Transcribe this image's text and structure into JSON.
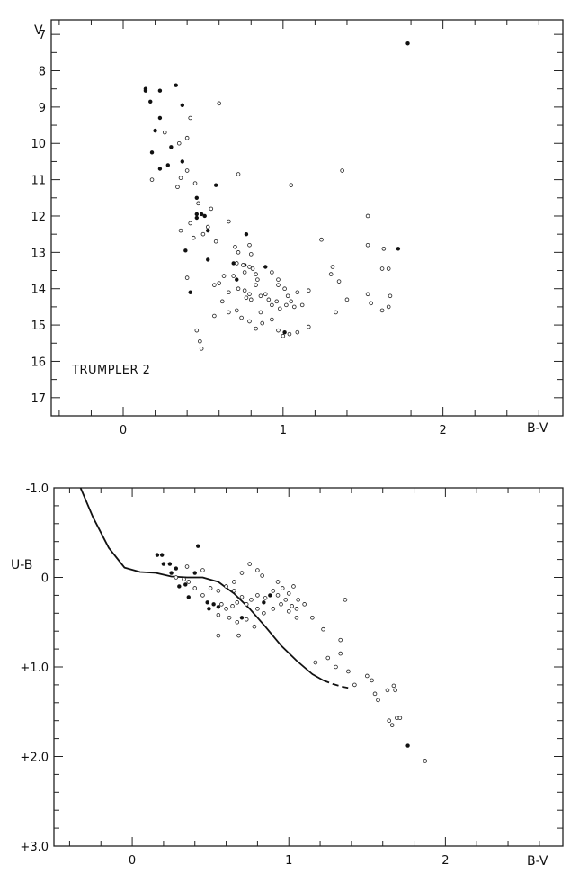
{
  "chart_data": [
    {
      "type": "scatter",
      "title": "TRUMPLER 2",
      "xlabel": "B-V",
      "ylabel": "V",
      "xlim": [
        -0.45,
        2.75
      ],
      "ylim": [
        6.6,
        17.5
      ],
      "y_inverted": true,
      "x_ticks": [
        {
          "v": 0,
          "label": "0"
        },
        {
          "v": 1,
          "label": "1"
        },
        {
          "v": 2,
          "label": "2"
        }
      ],
      "y_ticks": [
        {
          "v": 7,
          "label": "7"
        },
        {
          "v": 8,
          "label": "8"
        },
        {
          "v": 9,
          "label": "9"
        },
        {
          "v": 10,
          "label": "10"
        },
        {
          "v": 11,
          "label": "11"
        },
        {
          "v": 12,
          "label": "12"
        },
        {
          "v": 13,
          "label": "13"
        },
        {
          "v": 14,
          "label": "14"
        },
        {
          "v": 15,
          "label": "15"
        },
        {
          "v": 16,
          "label": "16"
        },
        {
          "v": 17,
          "label": "17"
        }
      ],
      "grid": false,
      "series": [
        {
          "marker": "filled",
          "points": [
            [
              0.14,
              8.5
            ],
            [
              0.14,
              8.55
            ],
            [
              0.23,
              8.55
            ],
            [
              0.33,
              8.4
            ],
            [
              0.17,
              8.85
            ],
            [
              0.37,
              8.95
            ],
            [
              0.2,
              9.65
            ],
            [
              0.23,
              9.3
            ],
            [
              0.3,
              10.1
            ],
            [
              0.18,
              10.25
            ],
            [
              0.23,
              10.7
            ],
            [
              0.28,
              10.6
            ],
            [
              0.37,
              10.5
            ],
            [
              0.58,
              11.15
            ],
            [
              0.46,
              11.5
            ],
            [
              0.46,
              11.95
            ],
            [
              0.49,
              11.95
            ],
            [
              0.46,
              12.05
            ],
            [
              0.51,
              12.0
            ],
            [
              0.53,
              12.4
            ],
            [
              0.77,
              12.5
            ],
            [
              0.39,
              12.95
            ],
            [
              0.53,
              13.2
            ],
            [
              0.69,
              13.3
            ],
            [
              0.76,
              13.35
            ],
            [
              0.71,
              13.75
            ],
            [
              0.89,
              13.4
            ],
            [
              0.42,
              14.1
            ],
            [
              1.72,
              12.9
            ],
            [
              1.78,
              7.25
            ],
            [
              1.01,
              15.2
            ]
          ]
        },
        {
          "marker": "open",
          "points": [
            [
              0.6,
              8.9
            ],
            [
              0.42,
              9.3
            ],
            [
              0.26,
              9.7
            ],
            [
              0.4,
              9.85
            ],
            [
              0.35,
              10.0
            ],
            [
              0.18,
              11.0
            ],
            [
              0.4,
              10.75
            ],
            [
              0.36,
              10.95
            ],
            [
              0.34,
              11.2
            ],
            [
              0.45,
              11.1
            ],
            [
              0.72,
              10.85
            ],
            [
              1.05,
              11.15
            ],
            [
              1.37,
              10.75
            ],
            [
              0.47,
              11.65
            ],
            [
              0.55,
              11.8
            ],
            [
              0.53,
              12.3
            ],
            [
              0.36,
              12.4
            ],
            [
              0.42,
              12.2
            ],
            [
              0.66,
              12.15
            ],
            [
              0.5,
              12.5
            ],
            [
              0.58,
              12.7
            ],
            [
              0.7,
              12.85
            ],
            [
              0.79,
              12.8
            ],
            [
              0.72,
              13.0
            ],
            [
              0.8,
              13.05
            ],
            [
              0.71,
              13.3
            ],
            [
              0.75,
              13.35
            ],
            [
              0.79,
              13.4
            ],
            [
              0.81,
              13.45
            ],
            [
              0.76,
              13.55
            ],
            [
              0.83,
              13.6
            ],
            [
              0.69,
              13.65
            ],
            [
              0.84,
              13.75
            ],
            [
              0.93,
              13.55
            ],
            [
              0.97,
              13.75
            ],
            [
              0.97,
              13.9
            ],
            [
              1.01,
              14.0
            ],
            [
              1.03,
              14.2
            ],
            [
              1.09,
              14.1
            ],
            [
              1.16,
              14.05
            ],
            [
              0.6,
              13.85
            ],
            [
              0.66,
              14.1
            ],
            [
              0.72,
              14.0
            ],
            [
              0.76,
              14.05
            ],
            [
              0.79,
              14.15
            ],
            [
              0.8,
              14.3
            ],
            [
              0.86,
              14.2
            ],
            [
              0.89,
              14.15
            ],
            [
              0.91,
              14.3
            ],
            [
              0.93,
              14.45
            ],
            [
              0.96,
              14.35
            ],
            [
              0.98,
              14.55
            ],
            [
              1.02,
              14.45
            ],
            [
              1.05,
              14.35
            ],
            [
              1.07,
              14.5
            ],
            [
              1.12,
              14.45
            ],
            [
              0.62,
              14.35
            ],
            [
              0.66,
              14.65
            ],
            [
              0.71,
              14.6
            ],
            [
              0.74,
              14.8
            ],
            [
              0.79,
              14.9
            ],
            [
              0.83,
              15.1
            ],
            [
              0.87,
              14.95
            ],
            [
              0.93,
              14.85
            ],
            [
              0.97,
              15.15
            ],
            [
              1.0,
              15.3
            ],
            [
              1.04,
              15.25
            ],
            [
              1.09,
              15.2
            ],
            [
              1.16,
              15.05
            ],
            [
              0.46,
              15.15
            ],
            [
              0.48,
              15.45
            ],
            [
              0.49,
              15.65
            ],
            [
              0.57,
              14.75
            ],
            [
              0.86,
              14.65
            ],
            [
              0.83,
              13.9
            ],
            [
              0.77,
              14.25
            ],
            [
              0.63,
              13.65
            ],
            [
              0.57,
              13.9
            ],
            [
              0.4,
              13.7
            ],
            [
              0.44,
              12.6
            ],
            [
              1.24,
              12.65
            ],
            [
              1.31,
              13.4
            ],
            [
              1.35,
              13.8
            ],
            [
              1.33,
              14.65
            ],
            [
              1.53,
              12.0
            ],
            [
              1.53,
              12.8
            ],
            [
              1.63,
              12.9
            ],
            [
              1.66,
              13.45
            ],
            [
              1.62,
              13.45
            ],
            [
              1.66,
              14.5
            ],
            [
              1.67,
              14.2
            ],
            [
              1.53,
              14.15
            ],
            [
              1.55,
              14.4
            ],
            [
              1.4,
              14.3
            ],
            [
              1.62,
              14.6
            ],
            [
              1.3,
              13.6
            ]
          ]
        }
      ]
    },
    {
      "type": "scatter",
      "title": "",
      "xlabel": "B-V",
      "ylabel": "U-B",
      "xlim": [
        -0.5,
        2.75
      ],
      "ylim": [
        -1.0,
        3.0
      ],
      "y_inverted": true,
      "x_ticks": [
        {
          "v": 0,
          "label": "0"
        },
        {
          "v": 1,
          "label": "1"
        },
        {
          "v": 2,
          "label": "2"
        }
      ],
      "y_ticks": [
        {
          "v": -1.0,
          "label": "-1.0"
        },
        {
          "v": 0,
          "label": "0"
        },
        {
          "v": 1.0,
          "label": "+1.0"
        },
        {
          "v": 2.0,
          "label": "+2.0"
        },
        {
          "v": 3.0,
          "label": "+3.0"
        }
      ],
      "grid": false,
      "curve_solid": [
        [
          -0.33,
          -1.0
        ],
        [
          -0.25,
          -0.67
        ],
        [
          -0.15,
          -0.33
        ],
        [
          -0.05,
          -0.11
        ],
        [
          0.05,
          -0.06
        ],
        [
          0.15,
          -0.05
        ],
        [
          0.25,
          -0.01
        ],
        [
          0.35,
          0.0
        ],
        [
          0.45,
          0.0
        ],
        [
          0.55,
          0.05
        ],
        [
          0.65,
          0.18
        ],
        [
          0.75,
          0.35
        ],
        [
          0.85,
          0.55
        ],
        [
          0.95,
          0.76
        ],
        [
          1.05,
          0.93
        ],
        [
          1.15,
          1.08
        ],
        [
          1.22,
          1.15
        ]
      ],
      "curve_dashed": [
        [
          1.22,
          1.15
        ],
        [
          1.28,
          1.19
        ],
        [
          1.34,
          1.22
        ],
        [
          1.4,
          1.24
        ]
      ],
      "series": [
        {
          "marker": "filled",
          "points": [
            [
              0.16,
              -0.25
            ],
            [
              0.19,
              -0.25
            ],
            [
              0.2,
              -0.15
            ],
            [
              0.24,
              -0.15
            ],
            [
              0.28,
              -0.1
            ],
            [
              0.25,
              -0.05
            ],
            [
              0.42,
              -0.35
            ],
            [
              0.4,
              -0.05
            ],
            [
              0.34,
              0.08
            ],
            [
              0.36,
              0.22
            ],
            [
              0.48,
              0.28
            ],
            [
              0.52,
              0.3
            ],
            [
              0.55,
              0.33
            ],
            [
              0.49,
              0.35
            ],
            [
              0.7,
              0.45
            ],
            [
              0.84,
              0.28
            ],
            [
              0.88,
              0.2
            ],
            [
              1.76,
              1.88
            ],
            [
              0.3,
              0.1
            ]
          ]
        },
        {
          "marker": "open",
          "points": [
            [
              0.35,
              -0.12
            ],
            [
              0.45,
              -0.08
            ],
            [
              0.28,
              0.0
            ],
            [
              0.33,
              0.02
            ],
            [
              0.36,
              0.05
            ],
            [
              0.4,
              0.12
            ],
            [
              0.45,
              0.2
            ],
            [
              0.5,
              0.12
            ],
            [
              0.55,
              0.15
            ],
            [
              0.6,
              0.1
            ],
            [
              0.65,
              0.05
            ],
            [
              0.7,
              -0.05
            ],
            [
              0.75,
              -0.15
            ],
            [
              0.8,
              -0.08
            ],
            [
              0.83,
              -0.02
            ],
            [
              0.57,
              0.3
            ],
            [
              0.6,
              0.35
            ],
            [
              0.64,
              0.32
            ],
            [
              0.67,
              0.28
            ],
            [
              0.7,
              0.22
            ],
            [
              0.73,
              0.3
            ],
            [
              0.76,
              0.25
            ],
            [
              0.8,
              0.2
            ],
            [
              0.85,
              0.23
            ],
            [
              0.9,
              0.15
            ],
            [
              0.93,
              0.2
            ],
            [
              0.96,
              0.12
            ],
            [
              1.0,
              0.18
            ],
            [
              1.03,
              0.1
            ],
            [
              1.06,
              0.25
            ],
            [
              0.8,
              0.35
            ],
            [
              0.84,
              0.4
            ],
            [
              0.9,
              0.35
            ],
            [
              0.95,
              0.3
            ],
            [
              1.0,
              0.38
            ],
            [
              1.05,
              0.45
            ],
            [
              0.55,
              0.42
            ],
            [
              0.62,
              0.45
            ],
            [
              0.67,
              0.5
            ],
            [
              0.73,
              0.47
            ],
            [
              0.78,
              0.55
            ],
            [
              0.55,
              0.65
            ],
            [
              0.68,
              0.65
            ],
            [
              0.98,
              0.25
            ],
            [
              1.02,
              0.32
            ],
            [
              1.05,
              0.35
            ],
            [
              1.1,
              0.3
            ],
            [
              1.15,
              0.45
            ],
            [
              1.17,
              0.95
            ],
            [
              1.25,
              0.9
            ],
            [
              1.3,
              1.0
            ],
            [
              1.33,
              0.7
            ],
            [
              1.33,
              0.85
            ],
            [
              1.36,
              0.25
            ],
            [
              1.38,
              1.05
            ],
            [
              1.42,
              1.2
            ],
            [
              1.22,
              0.58
            ],
            [
              1.5,
              1.1
            ],
            [
              1.53,
              1.15
            ],
            [
              1.55,
              1.3
            ],
            [
              1.57,
              1.37
            ],
            [
              1.63,
              1.26
            ],
            [
              1.67,
              1.21
            ],
            [
              1.68,
              1.26
            ],
            [
              1.64,
              1.6
            ],
            [
              1.66,
              1.65
            ],
            [
              1.69,
              1.57
            ],
            [
              1.71,
              1.57
            ],
            [
              1.87,
              2.05
            ],
            [
              0.65,
              0.15
            ],
            [
              0.93,
              0.05
            ]
          ]
        }
      ]
    }
  ]
}
